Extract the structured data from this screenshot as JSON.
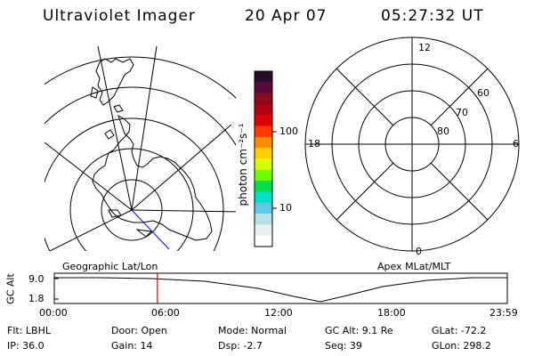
{
  "header": {
    "instrument": "Ultraviolet Imager",
    "date": "20 Apr 07",
    "time": "05:27:32 UT"
  },
  "left_panel": {
    "projection_label": "Geographic Lat/Lon"
  },
  "colorbar": {
    "axis_label": "photon cm⁻²s⁻¹",
    "ticks": [
      "100",
      "10"
    ],
    "colors": [
      "#2b0d2b",
      "#5a0a3a",
      "#8a0a1a",
      "#b50010",
      "#e00000",
      "#ff3a00",
      "#ff8c00",
      "#ffd000",
      "#d8ff00",
      "#6cff00",
      "#00e04a",
      "#00e0c8",
      "#60c8e8",
      "#b8e2ea",
      "#e8f2f4",
      "#ffffff"
    ]
  },
  "right_panel": {
    "projection_label": "Apex MLat/MLT",
    "mlt_labels": {
      "top": "12",
      "right": "6",
      "bottom": "0",
      "left": "18"
    },
    "lat_labels": [
      "60",
      "70",
      "80"
    ]
  },
  "timeline": {
    "y_axis_label": "GC Alt",
    "y_ticks": [
      "9.0",
      "1.8"
    ],
    "x_ticks": [
      "00:00",
      "06:00",
      "12:00",
      "18:00",
      "23:59"
    ],
    "current_time_hours": 5.459,
    "marker_color": "#e00000"
  },
  "status": {
    "flt": "Flt: LBHL",
    "ip": "IP: 36.0",
    "door": "Door: Open",
    "gain": "Gain: 14",
    "mode": "Mode: Normal",
    "dsp": "Dsp:   -2.7",
    "gc_alt": "GC Alt: 9.1 Re",
    "seq": "Seq: 39",
    "glat": "GLat: -72.2",
    "glon": "GLon: 298.2"
  }
}
